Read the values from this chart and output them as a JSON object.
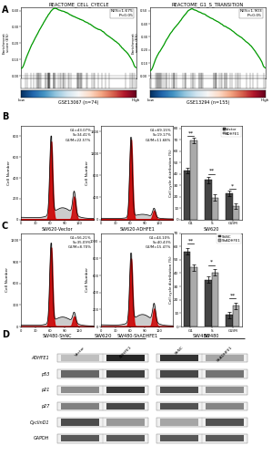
{
  "gsea1_title": "REACTOME_CELL_CYECLE",
  "gsea1_nes": "NES=1.675",
  "gsea1_p": "P<0.05",
  "gsea1_label": "GSE13067 (n=74)",
  "gsea2_title": "REACTOME_G1_S_TRANSITION",
  "gsea2_nes": "NES=1.903",
  "gsea2_p": "P<0.05",
  "gsea2_label": "GSE13294 (n=155)",
  "panel_b_left_label": "SW620-Vector",
  "panel_b_right_label": "SW620-ADHFE1",
  "panel_b_left_stats": "G1=43.07%\nS=34.41%\nG2/M=22.57%",
  "panel_b_right_stats": "G1=69.15%\nS=19.17%\nG2/M=11.68%",
  "panel_b_bar_title": "SW620",
  "panel_b_bar_legend1": "Vector",
  "panel_b_bar_legend2": "ADHFE1",
  "panel_b_bar_g1": [
    43.07,
    69.15
  ],
  "panel_b_bar_s": [
    34.41,
    19.17
  ],
  "panel_b_bar_g2m": [
    22.57,
    11.68
  ],
  "panel_c_left_label": "SW480-ShNC",
  "panel_c_right_label": "SW480-ShADHFE1",
  "panel_c_left_stats": "G1=56.21%\nS=35.09%\nG2/M=8.70%",
  "panel_c_right_stats": "G1=44.10%\nS=40.43%\nG2/M=15.47%",
  "panel_c_bar_title": "SW480",
  "panel_c_bar_legend1": "ShNC",
  "panel_c_bar_legend2": "ShADHFE1",
  "panel_c_bar_g1": [
    56.21,
    44.1
  ],
  "panel_c_bar_s": [
    35.09,
    40.43
  ],
  "panel_c_bar_g2m": [
    8.7,
    15.47
  ],
  "western_proteins": [
    "ADHFE1",
    "p53",
    "p21",
    "p27",
    "CyclinD1",
    "GAPDH"
  ],
  "sw620_labels": [
    "Vector",
    "ADHFE1"
  ],
  "sw480_labels": [
    "ShNC",
    "ShADHFE1"
  ],
  "bar_color_dark": "#444444",
  "bar_color_light": "#aaaaaa",
  "gsea_line_color": "#009900",
  "flow_peak_color_red": "#cc0000",
  "flow_bg_color": "#cccccc",
  "gsea1_yticks": [
    0.0,
    0.1,
    0.2,
    0.3,
    0.4
  ],
  "gsea2_yticks": [
    0.0,
    0.1,
    0.2,
    0.3,
    0.4,
    0.5
  ]
}
